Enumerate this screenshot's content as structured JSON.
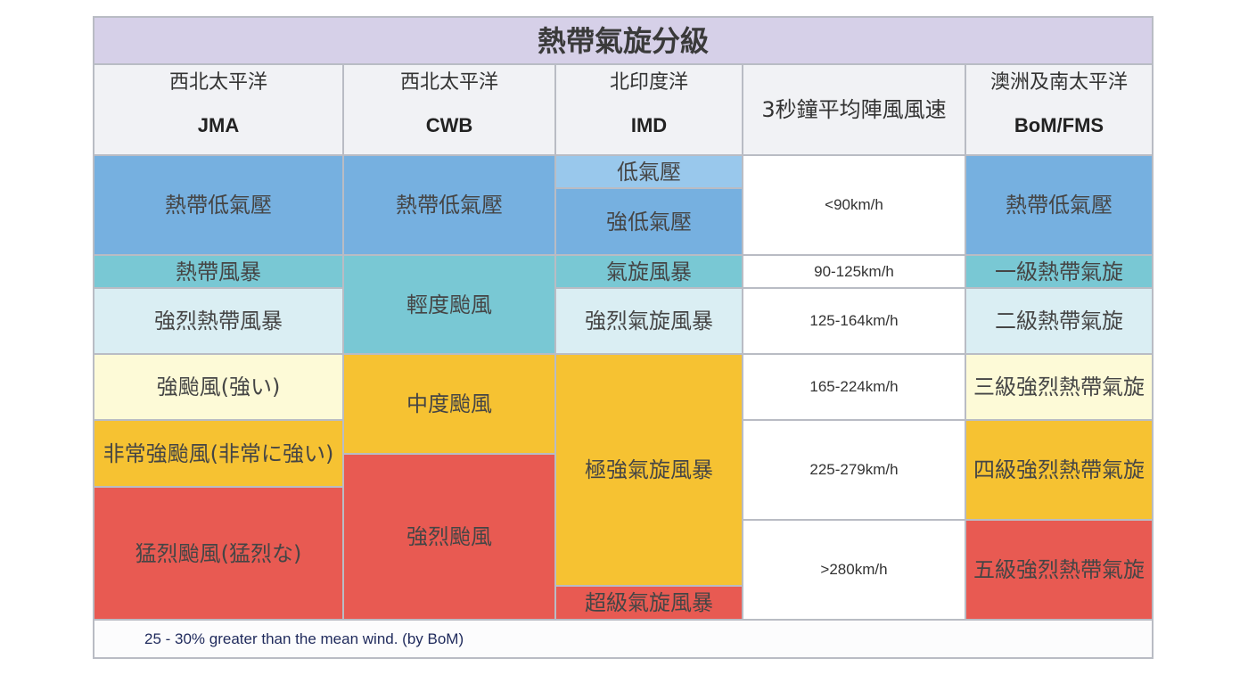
{
  "title": "熱帶氣旋分級",
  "headers": {
    "jma": {
      "region": "西北太平洋",
      "agency": "JMA"
    },
    "cwb": {
      "region": "西北太平洋",
      "agency": "CWB"
    },
    "imd": {
      "region": "北印度洋",
      "agency": "IMD"
    },
    "gust": "3秒鐘平均陣風風速",
    "bom": {
      "region": "澳洲及南太平洋",
      "agency": "BoM/FMS"
    }
  },
  "colors": {
    "blue": "#76b0e0",
    "light_blue": "#99c8ec",
    "teal": "#79c8d4",
    "pale_cyan": "#daeef3",
    "pale_yellow": "#fdfad7",
    "orange": "#f6c232",
    "red": "#e85a52"
  },
  "jma": [
    {
      "label": "熱帶低氣壓",
      "color": "#76b0e0"
    },
    {
      "label": "熱帶風暴",
      "color": "#79c8d4"
    },
    {
      "label": "強烈熱帶風暴",
      "color": "#daeef3"
    },
    {
      "label": "強颱風(強い)",
      "color": "#fdfad7"
    },
    {
      "label": "非常強颱風(非常に強い)",
      "color": "#f6c232"
    },
    {
      "label": "猛烈颱風(猛烈な)",
      "color": "#e85a52"
    }
  ],
  "cwb": [
    {
      "label": "熱帶低氣壓",
      "color": "#76b0e0"
    },
    {
      "label": "輕度颱風",
      "color": "#79c8d4"
    },
    {
      "label": "中度颱風",
      "color": "#f6c232"
    },
    {
      "label": "強烈颱風",
      "color": "#e85a52"
    }
  ],
  "imd": [
    {
      "label": "低氣壓",
      "color": "#99c8ec"
    },
    {
      "label": "強低氣壓",
      "color": "#76b0e0"
    },
    {
      "label": "氣旋風暴",
      "color": "#79c8d4"
    },
    {
      "label": "強烈氣旋風暴",
      "color": "#daeef3"
    },
    {
      "label": "極強氣旋風暴",
      "color": "#f6c232"
    },
    {
      "label": "超級氣旋風暴",
      "color": "#e85a52"
    }
  ],
  "speeds": [
    "<90km/h",
    "90-125km/h",
    "125-164km/h",
    "165-224km/h",
    "225-279km/h",
    ">280km/h"
  ],
  "bom": [
    {
      "label": "熱帶低氣壓",
      "color": "#76b0e0"
    },
    {
      "label": "一級熱帶氣旋",
      "color": "#79c8d4"
    },
    {
      "label": "二級熱帶氣旋",
      "color": "#daeef3"
    },
    {
      "label": "三級強烈熱帶氣旋",
      "color": "#fdfad7"
    },
    {
      "label": "四級強烈熱帶氣旋",
      "color": "#f6c232"
    },
    {
      "label": "五級強烈熱帶氣旋",
      "color": "#e85a52"
    }
  ],
  "footnote": "25 - 30% greater than the mean wind. (by BoM)"
}
